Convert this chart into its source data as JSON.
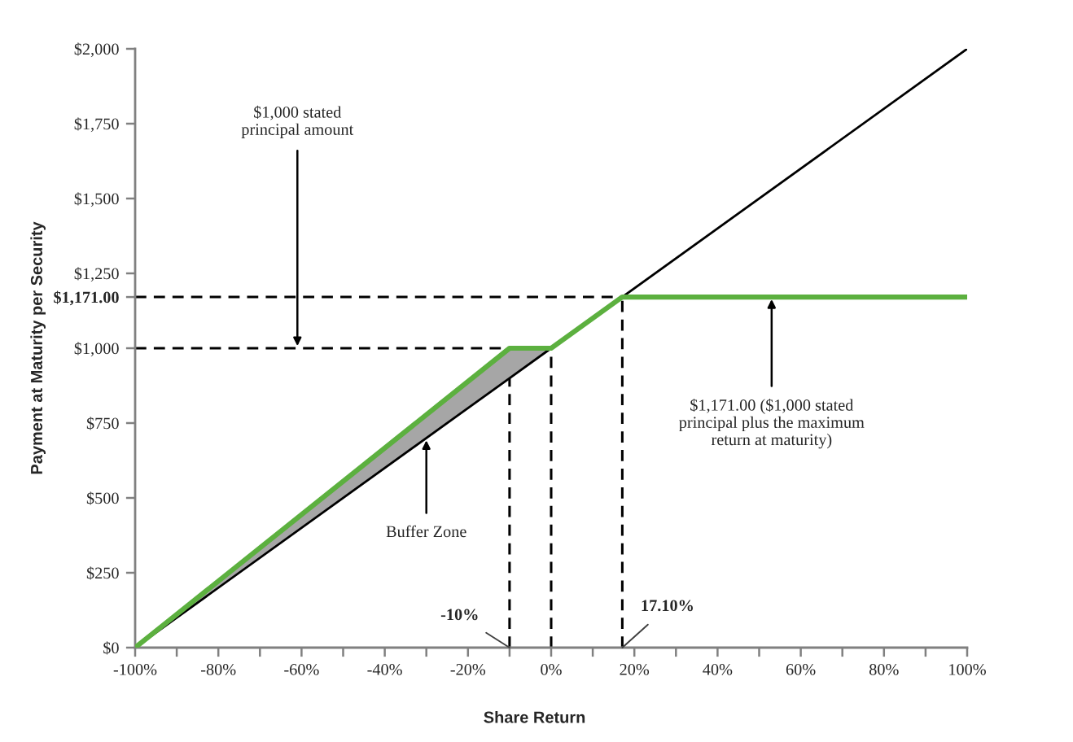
{
  "chart_data": {
    "type": "line",
    "xlabel": "Share Return",
    "ylabel": "Payment at Maturity per Security",
    "xlim": [
      -100,
      100
    ],
    "ylim": [
      0,
      2000
    ],
    "xticks": [
      {
        "value": -100,
        "label": "-100%"
      },
      {
        "value": -90,
        "label": null
      },
      {
        "value": -80,
        "label": "-80%"
      },
      {
        "value": -70,
        "label": null
      },
      {
        "value": -60,
        "label": "-60%"
      },
      {
        "value": -50,
        "label": null
      },
      {
        "value": -40,
        "label": "-40%"
      },
      {
        "value": -30,
        "label": null
      },
      {
        "value": -20,
        "label": "-20%"
      },
      {
        "value": -10,
        "label": null
      },
      {
        "value": 0,
        "label": "0%"
      },
      {
        "value": 10,
        "label": null
      },
      {
        "value": 20,
        "label": "20%"
      },
      {
        "value": 30,
        "label": null
      },
      {
        "value": 40,
        "label": "40%"
      },
      {
        "value": 50,
        "label": null
      },
      {
        "value": 60,
        "label": "60%"
      },
      {
        "value": 70,
        "label": null
      },
      {
        "value": 80,
        "label": "80%"
      },
      {
        "value": 90,
        "label": null
      },
      {
        "value": 100,
        "label": "100%"
      }
    ],
    "yticks": [
      {
        "value": 0,
        "label": "$0"
      },
      {
        "value": 250,
        "label": "$250"
      },
      {
        "value": 500,
        "label": "$500"
      },
      {
        "value": 750,
        "label": "$750"
      },
      {
        "value": 1000,
        "label": "$1,000"
      },
      {
        "value": 1171,
        "label": "$1,171.00"
      },
      {
        "value": 1250,
        "label": "$1,250"
      },
      {
        "value": 1500,
        "label": "$1,500"
      },
      {
        "value": 1750,
        "label": "$1,750"
      },
      {
        "value": 2000,
        "label": "$2,000"
      }
    ],
    "series": [
      {
        "color": "#000000",
        "line_style": "dashed",
        "x": [
          -100,
          -10
        ],
        "values": [
          1000,
          1000
        ]
      },
      {
        "color": "#000000",
        "line_style": "dashed",
        "x": [
          -10,
          -10
        ],
        "values": [
          0,
          1000
        ]
      },
      {
        "color": "#000000",
        "line_style": "dashed",
        "x": [
          0,
          0
        ],
        "values": [
          0,
          1000
        ]
      },
      {
        "color": "#000000",
        "line_style": "dashed",
        "x": [
          -100,
          17.1
        ],
        "values": [
          1171,
          1171
        ]
      },
      {
        "color": "#000000",
        "line_style": "dashed",
        "x": [
          17.1,
          17.1
        ],
        "values": [
          0,
          1171
        ]
      },
      {
        "color": "#000000",
        "line_style": "solid",
        "x": [
          -100,
          -10,
          0,
          100
        ],
        "values": [
          0,
          900,
          1000,
          2000
        ],
        "lower": [
          0,
          900,
          1000,
          2000
        ],
        "upper": [
          0,
          1000,
          1000,
          2000
        ]
      },
      {
        "color": "#5cb03f",
        "line_style": "solid",
        "x": [
          -100,
          -10,
          0,
          17.1,
          100
        ],
        "values": [
          0,
          1000,
          1000,
          1171,
          1171
        ]
      }
    ],
    "annotations": [
      {
        "text": "$1,000 stated\nprincipal amount",
        "x": -61,
        "y": 1000
      },
      {
        "text": "Buffer Zone",
        "x": -30,
        "y": 700
      },
      {
        "text": "$1,171.00 ($1,000 stated\nprincipal plus the maximum\nreturn at maturity)",
        "x": 53,
        "y": 1171
      },
      {
        "text": "-10%",
        "x": -10,
        "y": 0
      },
      {
        "text": "17.10%",
        "x": 17.1,
        "y": 0
      }
    ]
  }
}
